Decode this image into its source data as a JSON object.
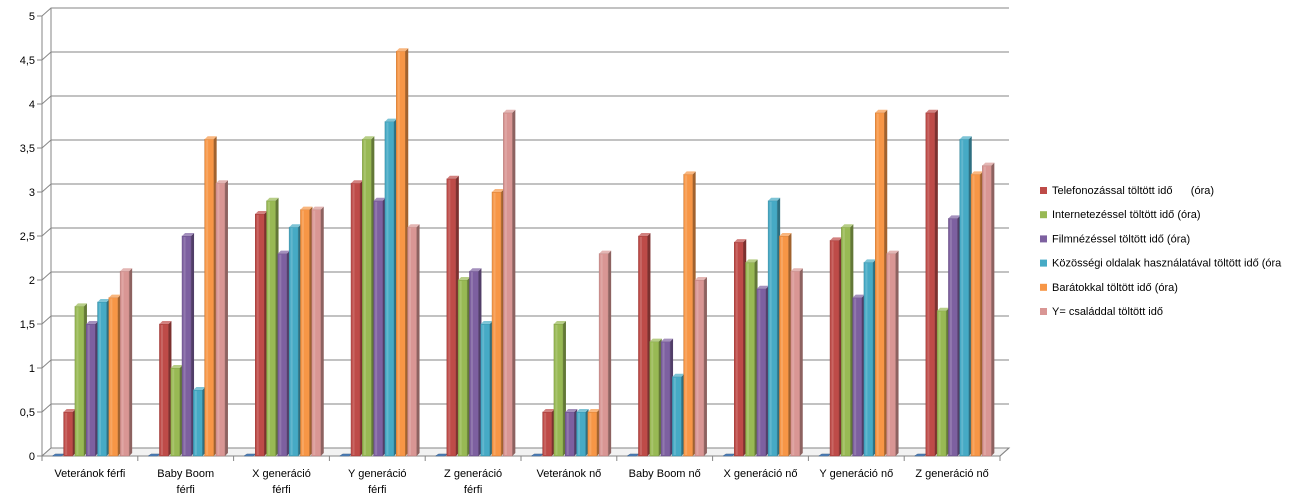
{
  "chart_data": {
    "type": "bar",
    "title": "",
    "xlabel": "",
    "ylabel": "",
    "ylim": [
      0,
      5
    ],
    "yticks": [
      "0",
      "0,5",
      "1",
      "1,5",
      "2",
      "2,5",
      "3",
      "3,5",
      "4",
      "4,5",
      "5"
    ],
    "grid": true,
    "legend_position": "right",
    "categories": [
      [
        "Veteránok férfi"
      ],
      [
        "Baby Boom",
        "férfi"
      ],
      [
        "X generáció",
        "férfi"
      ],
      [
        "Y generáció",
        "férfi"
      ],
      [
        "Z generáció",
        "férfi"
      ],
      [
        "Veteránok nő"
      ],
      [
        "Baby Boom nő"
      ],
      [
        "X generáció nő"
      ],
      [
        "Y generáció nő"
      ],
      [
        "Z generáció nő"
      ]
    ],
    "series": [
      {
        "name": "Telefonozással töltött idő      (óra)",
        "color": "#be4b48",
        "values": [
          0.5,
          1.5,
          2.75,
          3.1,
          3.15,
          0.5,
          2.5,
          2.43,
          2.45,
          3.9
        ]
      },
      {
        "name": "Internetezéssel töltött idő (óra)",
        "color": "#98b954",
        "values": [
          1.7,
          1.0,
          2.9,
          3.6,
          2.0,
          1.5,
          1.3,
          2.2,
          2.6,
          1.65
        ]
      },
      {
        "name": "Filmnézéssel töltött idő (óra)",
        "color": "#7d60a0",
        "values": [
          1.5,
          2.5,
          2.3,
          2.9,
          2.1,
          0.5,
          1.3,
          1.9,
          1.8,
          2.7
        ]
      },
      {
        "name": "Közösségi oldalak használatával töltött idő (óra",
        "color": "#46aac5",
        "values": [
          1.75,
          0.75,
          2.6,
          3.8,
          1.5,
          0.5,
          0.9,
          2.9,
          2.2,
          3.6
        ]
      },
      {
        "name": "Barátokkal töltött idő (óra)",
        "color": "#f79646",
        "values": [
          1.8,
          3.6,
          2.8,
          4.6,
          3.0,
          0.5,
          3.2,
          2.5,
          3.9,
          3.2
        ]
      },
      {
        "name": "Y= családdal töltött idő",
        "color": "#d99694",
        "values": [
          2.1,
          3.1,
          2.8,
          2.6,
          3.9,
          2.3,
          2.0,
          2.1,
          2.3,
          3.3
        ]
      }
    ],
    "empty_series_color": "#4f81bd"
  }
}
